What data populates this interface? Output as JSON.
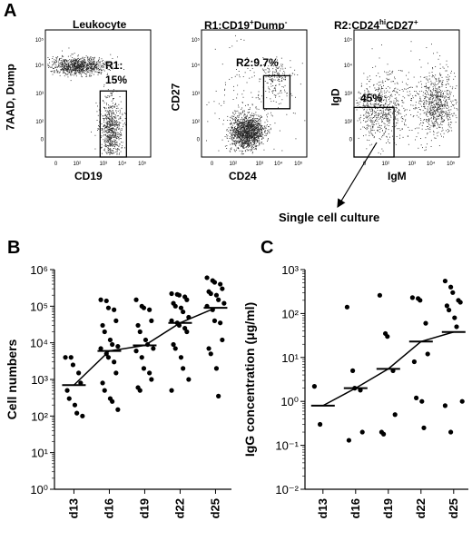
{
  "panel_a": {
    "letter": "A",
    "plots": [
      {
        "title": "Leukocyte",
        "title_sup": "",
        "title_tail": "",
        "xlabel": "CD19",
        "ylabel": "7AAD, Dump",
        "gate_label": "R1:\n15%"
      },
      {
        "title": "R1:CD19",
        "title_sup": "+",
        "title_tail": "Dump",
        "title_sup2": "-",
        "xlabel": "CD24",
        "ylabel": "CD27",
        "gate_label": "R2:9.7%"
      },
      {
        "title": "R2:CD24",
        "title_sup": "hi",
        "title_tail": "CD27",
        "title_sup2": "+",
        "xlabel": "IgM",
        "ylabel": "IgD",
        "gate_label": "45%"
      }
    ],
    "facs_ticks_x": [
      "0",
      "10²",
      "10³",
      "10⁴",
      "10⁵"
    ],
    "facs_ticks_y": [
      "10⁵",
      "10⁴",
      "10³",
      "10²",
      "0"
    ],
    "arrow_label": "Single cell culture"
  },
  "panel_b": {
    "letter": "B"
  },
  "panel_c": {
    "letter": "C"
  },
  "chart_data": [
    {
      "type": "scatter",
      "ylabel": "Cell numbers",
      "yscale": "log",
      "ylim": [
        1,
        1000000
      ],
      "ytick_labels": [
        "10⁰",
        "10¹",
        "10²",
        "10³",
        "10⁴",
        "10⁵",
        "10⁶"
      ],
      "categories": [
        "d13",
        "d16",
        "d19",
        "d22",
        "d25"
      ],
      "medians": [
        700,
        6000,
        8500,
        35000,
        90000
      ],
      "points": [
        [
          4000,
          4000,
          2500,
          1500,
          800,
          500,
          300,
          200,
          120,
          100
        ],
        [
          150000,
          140000,
          90000,
          80000,
          40000,
          30000,
          20000,
          12000,
          9000,
          8000,
          7000,
          5000,
          4000,
          3000,
          1500,
          800,
          500,
          300,
          250,
          150
        ],
        [
          150000,
          100000,
          90000,
          80000,
          40000,
          30000,
          20000,
          12000,
          9000,
          7000,
          6000,
          4000,
          2000,
          1500,
          1000,
          600,
          500
        ],
        [
          220000,
          210000,
          200000,
          180000,
          150000,
          120000,
          100000,
          90000,
          70000,
          50000,
          40000,
          35000,
          30000,
          25000,
          20000,
          9000,
          7000,
          4000,
          2000,
          1000,
          500
        ],
        [
          600000,
          500000,
          450000,
          400000,
          300000,
          250000,
          220000,
          200000,
          150000,
          120000,
          100000,
          80000,
          40000,
          35000,
          12000,
          7000,
          5000,
          2000,
          350
        ]
      ]
    },
    {
      "type": "scatter",
      "ylabel": "IgG concentration (μg/ml)",
      "yscale": "log",
      "ylim": [
        0.01,
        1000
      ],
      "ytick_labels": [
        "10⁻²",
        "10⁻¹",
        "10⁰",
        "10¹",
        "10²",
        "10³"
      ],
      "categories": [
        "d13",
        "d16",
        "d19",
        "d22",
        "d25"
      ],
      "medians": [
        0.8,
        2.0,
        5.5,
        23,
        38
      ],
      "points": [
        [
          2.2,
          0.3
        ],
        [
          140,
          5,
          2.0,
          1.8,
          0.2,
          0.13
        ],
        [
          260,
          35,
          30,
          5,
          0.5,
          0.2,
          0.18
        ],
        [
          230,
          220,
          200,
          60,
          12,
          8,
          1.2,
          1.0,
          0.25
        ],
        [
          550,
          400,
          300,
          200,
          180,
          150,
          120,
          80,
          50,
          1.0,
          0.8,
          0.2
        ]
      ]
    }
  ]
}
